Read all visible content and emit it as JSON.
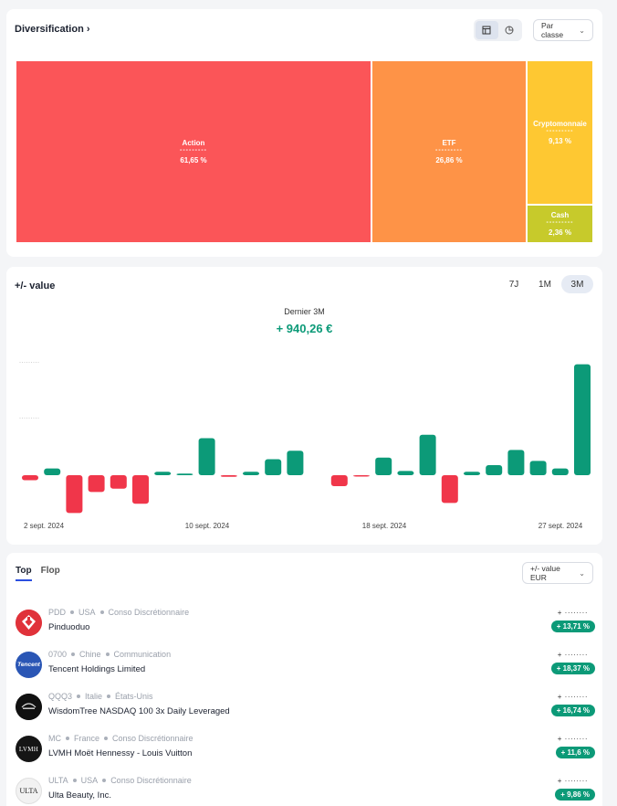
{
  "diversification": {
    "title": "Diversification",
    "chevron": "›",
    "view_options": [
      "table-icon",
      "pie-icon"
    ],
    "group_select": "Par classe",
    "treemap": [
      {
        "label": "Action",
        "value_hidden": "---------",
        "pct": "61,65 %",
        "color": "#fb5558"
      },
      {
        "label": "ETF",
        "value_hidden": "---------",
        "pct": "26,86 %",
        "color": "#fe9347"
      },
      {
        "label": "Cryptomonnaie",
        "value_hidden": "---------",
        "pct": "9,13 %",
        "color": "#fec832"
      },
      {
        "label": "Cash",
        "value_hidden": "---------",
        "pct": "2,36 %",
        "color": "#c7ca2b"
      }
    ]
  },
  "value_chart": {
    "title": "+/- value",
    "periods": [
      "7J",
      "1M",
      "3M"
    ],
    "active_period": "3M",
    "subtitle": "Dernier 3M",
    "total": "+ 940,26 €",
    "y_ticks_hidden": [
      "·········",
      "·········"
    ],
    "chart_data": {
      "type": "bar",
      "x_labels": [
        "2 sept. 2024",
        "10 sept. 2024",
        "18 sept. 2024",
        "27 sept. 2024"
      ],
      "values": [
        -6,
        8,
        -45,
        -20,
        -16,
        -34,
        4,
        2,
        44,
        -2,
        4,
        19,
        29,
        null,
        -13,
        -1,
        21,
        5,
        48,
        -33,
        4,
        12,
        30,
        17,
        8,
        132
      ],
      "colors": {
        "positive": "#0c9a78",
        "negative": "#f0364a"
      }
    }
  },
  "performers": {
    "tabs": [
      "Top",
      "Flop"
    ],
    "active_tab": "Top",
    "metric_select": "+/- value EUR",
    "items": [
      {
        "ticker": "PDD",
        "country": "USA",
        "sector": "Conso Discrétionnaire",
        "name": "Pinduoduo",
        "amount_hidden": "+ ········",
        "pct": "+ 13,71 %",
        "logo": "pdd-logo-icon"
      },
      {
        "ticker": "0700",
        "country": "Chine",
        "sector": "Communication",
        "name": "Tencent Holdings Limited",
        "amount_hidden": "+ ········",
        "pct": "+ 18,37 %",
        "logo": "tencent-logo-icon",
        "logo_text": "Tencent"
      },
      {
        "ticker": "QQQ3",
        "country": "Italie",
        "sector": "États-Unis",
        "name": "WisdomTree NASDAQ 100 3x Daily Leveraged",
        "amount_hidden": "+ ········",
        "pct": "+ 16,74 %",
        "logo": "wisdomtree-logo-icon"
      },
      {
        "ticker": "MC",
        "country": "France",
        "sector": "Conso Discrétionnaire",
        "name": "LVMH Moët Hennessy - Louis Vuitton",
        "amount_hidden": "+ ········",
        "pct": "+ 11,6 %",
        "logo": "lvmh-logo-icon",
        "logo_text": "LVMH"
      },
      {
        "ticker": "ULTA",
        "country": "USA",
        "sector": "Conso Discrétionnaire",
        "name": "Ulta Beauty, Inc.",
        "amount_hidden": "+ ········",
        "pct": "+ 9,86 %",
        "logo": "ulta-logo-icon",
        "logo_text": "ULTA"
      }
    ]
  }
}
